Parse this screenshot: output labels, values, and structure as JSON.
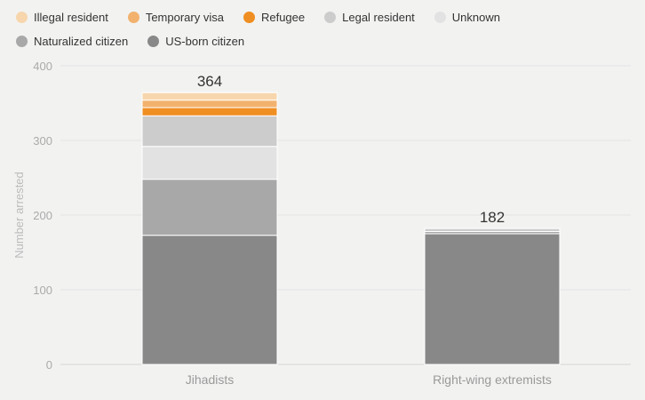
{
  "chart_data": {
    "type": "bar",
    "stacked": true,
    "categories": [
      "Jihadists",
      "Right-wing extremists"
    ],
    "series": [
      {
        "name": "US-born citizen",
        "color": "#888888",
        "values": [
          173,
          175
        ]
      },
      {
        "name": "Naturalized citizen",
        "color": "#a8a8a8",
        "values": [
          75,
          3
        ]
      },
      {
        "name": "Unknown",
        "color": "#e2e2e2",
        "values": [
          44,
          0
        ]
      },
      {
        "name": "Legal resident",
        "color": "#cccccc",
        "values": [
          41,
          4
        ]
      },
      {
        "name": "Refugee",
        "color": "#ef8e22",
        "values": [
          11,
          0
        ]
      },
      {
        "name": "Temporary visa",
        "color": "#f2b26e",
        "values": [
          10,
          0
        ]
      },
      {
        "name": "Illegal resident",
        "color": "#f7d6ad",
        "values": [
          10,
          0
        ]
      }
    ],
    "totals": [
      "364",
      "182"
    ],
    "legend_order": [
      "Illegal resident",
      "Temporary visa",
      "Refugee",
      "Legal resident",
      "Unknown",
      "Naturalized citizen",
      "US-born citizen"
    ],
    "yticks": [
      "0",
      "100",
      "200",
      "300",
      "400"
    ],
    "ylim": [
      0,
      400
    ],
    "ylabel": "Number arrested",
    "xlabel": "",
    "grid": true,
    "legend_position": "top-left"
  }
}
